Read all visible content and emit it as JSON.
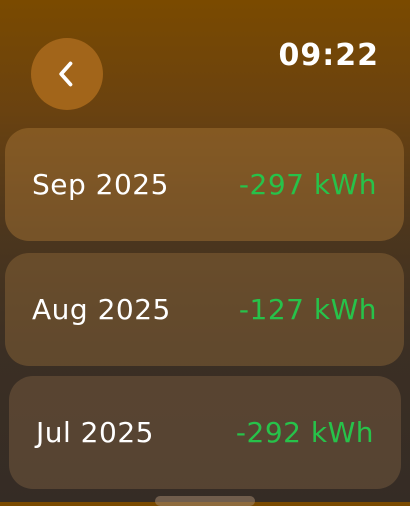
{
  "header": {
    "back_icon": "chevron-left-icon",
    "time": "09:22"
  },
  "months": [
    {
      "label": "Sep 2025",
      "value": "-297 kWh"
    },
    {
      "label": "Aug 2025",
      "value": "-127 kWh"
    },
    {
      "label": "Jul 2025",
      "value": "-292 kWh"
    }
  ],
  "colors": {
    "accent_green": "#27c24a",
    "back_button": "#a2651a"
  }
}
